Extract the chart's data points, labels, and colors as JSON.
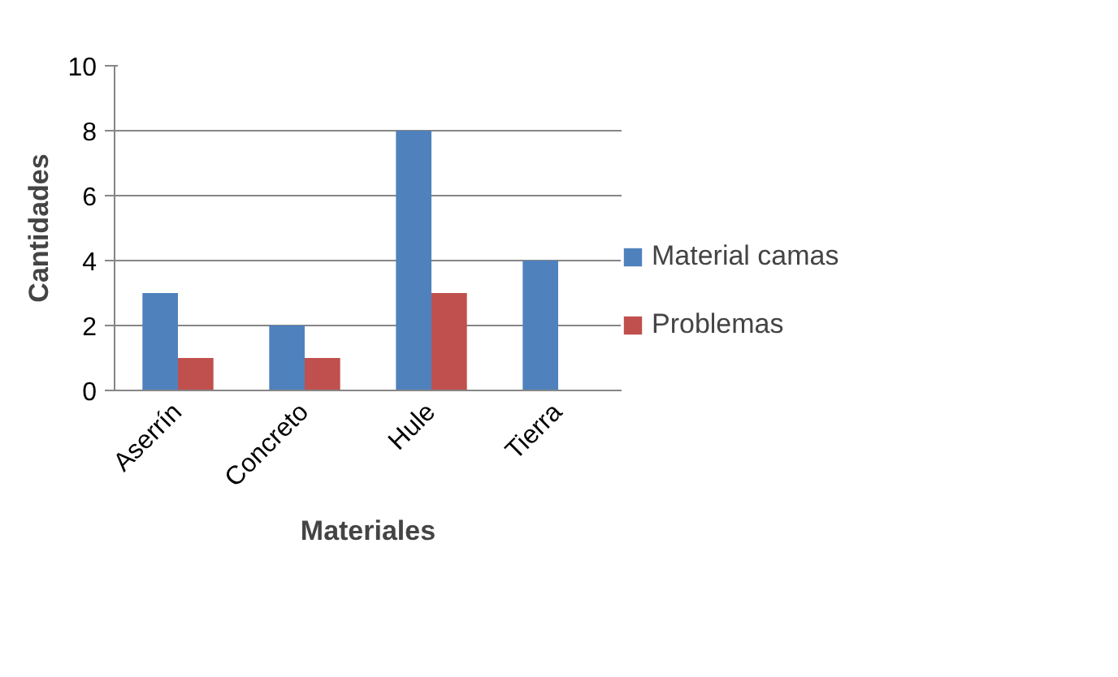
{
  "chart_data": {
    "type": "bar",
    "xlabel": "Materiales",
    "ylabel": "Cantidades",
    "categories": [
      "Aserrín",
      "Concreto",
      "Hule",
      "Tierra"
    ],
    "series": [
      {
        "name": "Material camas",
        "color": "#4f81bd",
        "values": [
          3,
          2,
          8,
          4
        ]
      },
      {
        "name": "Problemas",
        "color": "#c0504d",
        "values": [
          1,
          1,
          3,
          null
        ]
      }
    ],
    "ylim": [
      0,
      10
    ],
    "yticks": [
      0,
      2,
      4,
      6,
      8,
      10
    ],
    "grid": "y",
    "legend": "right"
  }
}
